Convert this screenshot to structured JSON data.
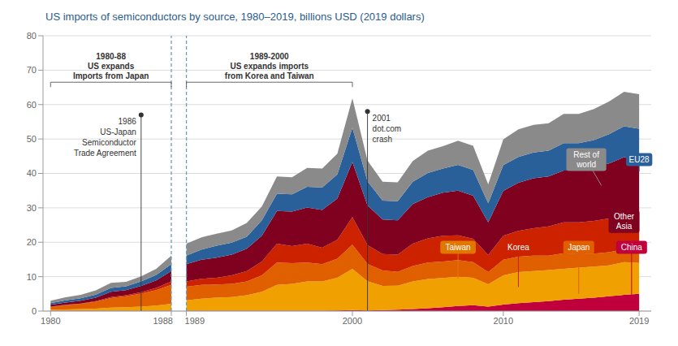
{
  "chart_data": {
    "type": "area",
    "stacked": true,
    "title": "US imports of semiconductors by source, 1980–2019, billions USD (2019 dollars)",
    "grid": true,
    "xlim": [
      1979.5,
      2019.8
    ],
    "xticks": [
      1980,
      1988,
      1989,
      2000,
      2010,
      2019
    ],
    "ylim": [
      0,
      80
    ],
    "yticks": [
      0,
      10,
      20,
      30,
      40,
      50,
      60,
      70,
      80
    ],
    "x_segments": [
      [
        1980,
        1981,
        1982,
        1983,
        1984,
        1985,
        1986,
        1987,
        1988
      ],
      [
        1989,
        1990,
        1991,
        1992,
        1993,
        1994,
        1995,
        1996,
        1997,
        1998,
        1999,
        2000,
        2001,
        2002,
        2003,
        2004,
        2005,
        2006,
        2007,
        2008,
        2009,
        2010,
        2011,
        2012,
        2013,
        2014,
        2015,
        2016,
        2017,
        2018,
        2019
      ]
    ],
    "series": [
      {
        "name": "China",
        "color": "#c0003c",
        "values": [
          [
            0.1,
            0.1,
            0.1,
            0.1,
            0.1,
            0.1,
            0.1,
            0.1,
            0.1
          ],
          [
            0.1,
            0.1,
            0.1,
            0.1,
            0.1,
            0.1,
            0.1,
            0.1,
            0.1,
            0.1,
            0.2,
            0.3,
            0.2,
            0.3,
            0.4,
            0.6,
            0.8,
            1.1,
            1.5,
            1.7,
            1.3,
            1.9,
            2.3,
            2.6,
            2.9,
            3.3,
            3.6,
            3.9,
            4.3,
            4.7,
            5.0
          ]
        ],
        "callout": {
          "x": 2018.5,
          "y": 2.5,
          "label_x": 2018.5,
          "label_y": 18.5,
          "color": "#c0003c"
        }
      },
      {
        "name": "Taiwan",
        "color": "#f0a000",
        "values": [
          [
            0.3,
            0.4,
            0.5,
            0.6,
            0.9,
            1.0,
            1.2,
            1.5,
            2.0
          ],
          [
            3.0,
            3.5,
            3.8,
            4.0,
            4.5,
            5.5,
            7.5,
            7.8,
            8.5,
            8.5,
            9.5,
            12.0,
            8.5,
            7.0,
            7.0,
            8.0,
            8.5,
            8.5,
            8.5,
            8.0,
            6.5,
            8.5,
            9.0,
            9.0,
            9.0,
            9.0,
            9.0,
            9.0,
            9.0,
            9.5,
            9.0
          ]
        ],
        "callout": {
          "x": 2007,
          "y": 9.5,
          "label_x": 2007,
          "label_y": 18.5,
          "color": "#e07800"
        }
      },
      {
        "name": "Japan",
        "color": "#e06000",
        "values": [
          [
            0.8,
            1.2,
            1.5,
            2.0,
            2.8,
            3.2,
            3.8,
            4.5,
            5.5
          ],
          [
            4.0,
            4.0,
            3.8,
            3.8,
            4.0,
            4.8,
            6.5,
            6.0,
            5.5,
            5.0,
            5.5,
            7.0,
            5.0,
            4.5,
            4.0,
            4.5,
            4.8,
            4.8,
            4.8,
            4.5,
            3.5,
            4.5,
            4.5,
            4.5,
            4.2,
            4.5,
            4.0,
            3.8,
            3.8,
            3.8,
            3.5
          ]
        ],
        "callout": {
          "x": 2015,
          "y": 5.0,
          "label_x": 2015,
          "label_y": 18.5,
          "color": "#e06000"
        }
      },
      {
        "name": "Korea",
        "color": "#cc2200",
        "values": [
          [
            0.1,
            0.1,
            0.1,
            0.2,
            0.3,
            0.3,
            0.4,
            0.6,
            1.0
          ],
          [
            1.5,
            1.8,
            2.0,
            2.5,
            3.0,
            4.0,
            5.5,
            5.0,
            5.5,
            4.8,
            5.5,
            8.0,
            5.5,
            4.8,
            5.0,
            6.5,
            7.0,
            7.5,
            7.2,
            6.8,
            5.0,
            7.0,
            7.5,
            8.0,
            8.5,
            9.0,
            9.2,
            9.5,
            9.8,
            10.2,
            10.5
          ]
        ],
        "callout": {
          "x": 2011,
          "y": 7.0,
          "label_x": 2011,
          "label_y": 18.5,
          "color": "#cc2200"
        }
      },
      {
        "name": "Other Asia",
        "color": "#800020",
        "values": [
          [
            0.5,
            0.7,
            0.8,
            1.0,
            1.5,
            1.5,
            1.8,
            2.2,
            3.0
          ],
          [
            5.0,
            5.5,
            5.8,
            6.0,
            6.5,
            7.5,
            9.5,
            10.0,
            10.5,
            11.0,
            12.0,
            16.0,
            11.5,
            10.0,
            10.0,
            11.5,
            12.0,
            12.5,
            13.0,
            12.5,
            9.5,
            13.0,
            14.0,
            14.5,
            14.5,
            15.0,
            15.0,
            15.5,
            16.0,
            16.5,
            16.0
          ]
        ],
        "callout": {
          "label_x": 2018,
          "label_y": 26,
          "color": "#800020"
        }
      },
      {
        "name": "EU28",
        "color": "#2a6099",
        "values": [
          [
            0.5,
            0.6,
            0.7,
            0.9,
            1.1,
            1.1,
            1.3,
            1.6,
            2.0
          ],
          [
            2.5,
            3.0,
            3.5,
            3.5,
            3.5,
            4.5,
            5.0,
            5.0,
            6.0,
            6.5,
            7.0,
            10.0,
            7.0,
            5.5,
            5.5,
            6.5,
            7.0,
            7.0,
            7.5,
            7.5,
            5.5,
            7.5,
            7.5,
            7.5,
            7.5,
            8.0,
            8.0,
            8.0,
            8.5,
            9.0,
            9.0
          ]
        ],
        "callout": {
          "x": 2019,
          "y": 40.5,
          "label_x": 2019,
          "label_y": 44,
          "color": "#2a6099"
        }
      },
      {
        "name": "Rest of world",
        "color": "#8a8a8a",
        "values": [
          [
            0.7,
            0.9,
            1.0,
            1.2,
            1.5,
            1.3,
            1.5,
            1.8,
            2.5
          ],
          [
            3.5,
            3.5,
            3.5,
            3.5,
            4.0,
            4.0,
            5.0,
            5.0,
            5.5,
            5.5,
            6.0,
            8.5,
            6.0,
            5.5,
            5.5,
            6.0,
            6.5,
            6.5,
            7.0,
            7.0,
            5.5,
            7.5,
            8.0,
            8.0,
            8.0,
            8.5,
            8.5,
            9.0,
            9.5,
            10.0,
            10.0
          ]
        ],
        "callout": {
          "x": 2016.5,
          "y": 36.5,
          "label_x": 2015.5,
          "label_y": 44,
          "color": "#8a8a8a"
        }
      }
    ],
    "annotations": [
      {
        "text": "1986\nUS-Japan\nSemiconductor\nTrade Agreement",
        "x": 1986,
        "y": 57
      },
      {
        "text": "2001\ndot.com\ncrash",
        "x": 2001,
        "y": 58
      }
    ],
    "brackets": [
      {
        "x": [
          1980,
          1988
        ],
        "y": 66.5,
        "text": "1980-88\nUS expands\nImports from Japan"
      },
      {
        "x": [
          1989,
          2000
        ],
        "y": 66.5,
        "text": "1989-2000\nUS expands imports\nfrom Korea and Taiwan"
      }
    ]
  }
}
